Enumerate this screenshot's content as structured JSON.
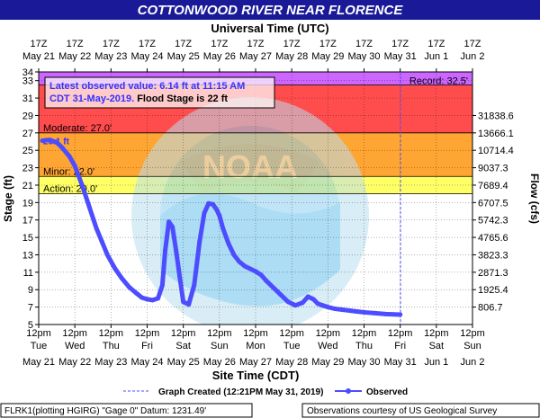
{
  "chart_data": {
    "type": "line",
    "title": "COTTONWOOD RIVER NEAR FLORENCE",
    "top_axis_title": "Universal Time (UTC)",
    "xlabel": "Site Time (CDT)",
    "ylabel": "Stage (ft)",
    "y2label": "Flow (cfs)",
    "ylim": [
      5,
      34
    ],
    "yticks": [
      5,
      7,
      9,
      11,
      13,
      15,
      17,
      19,
      21,
      23,
      25,
      27,
      29,
      31,
      33,
      34
    ],
    "flow_ticks": [
      {
        "stage": 7,
        "label": "806.7"
      },
      {
        "stage": 9,
        "label": "1925.4"
      },
      {
        "stage": 11,
        "label": "2871.3"
      },
      {
        "stage": 13,
        "label": "3823.3"
      },
      {
        "stage": 15,
        "label": "4765.6"
      },
      {
        "stage": 17,
        "label": "5742.3"
      },
      {
        "stage": 19,
        "label": "6707.5"
      },
      {
        "stage": 21,
        "label": "7689.4"
      },
      {
        "stage": 23,
        "label": "9037.3"
      },
      {
        "stage": 25,
        "label": "10714.4"
      },
      {
        "stage": 27,
        "label": "13666.1"
      },
      {
        "stage": 29,
        "label": "31838.6"
      }
    ],
    "x_ticks_bottom": [
      {
        "time": "May 21",
        "hour": "12pm",
        "day": "Tue",
        "date": "May 21"
      },
      {
        "time": "May 22",
        "hour": "12pm",
        "day": "Wed",
        "date": "May 22"
      },
      {
        "time": "May 23",
        "hour": "12pm",
        "day": "Thu",
        "date": "May 23"
      },
      {
        "time": "May 24",
        "hour": "12pm",
        "day": "Fri",
        "date": "May 24"
      },
      {
        "time": "May 25",
        "hour": "12pm",
        "day": "Sat",
        "date": "May 25"
      },
      {
        "time": "May 26",
        "hour": "12pm",
        "day": "Sun",
        "date": "May 26"
      },
      {
        "time": "May 27",
        "hour": "12pm",
        "day": "Mon",
        "date": "May 27"
      },
      {
        "time": "May 28",
        "hour": "12pm",
        "day": "Tue",
        "date": "May 28"
      },
      {
        "time": "May 29",
        "hour": "12pm",
        "day": "Wed",
        "date": "May 29"
      },
      {
        "time": "May 30",
        "hour": "12pm",
        "day": "Thu",
        "date": "May 30"
      },
      {
        "time": "May 31",
        "hour": "12pm",
        "day": "Fri",
        "date": "May 31"
      },
      {
        "time": "Jun 1",
        "hour": "12pm",
        "day": "Sat",
        "date": "Jun 1"
      },
      {
        "time": "Jun 2",
        "hour": "12pm",
        "day": "Sun",
        "date": "Jun 2"
      }
    ],
    "x_ticks_top": [
      {
        "hour": "17Z",
        "date": "May 21"
      },
      {
        "hour": "17Z",
        "date": "May 22"
      },
      {
        "hour": "17Z",
        "date": "May 23"
      },
      {
        "hour": "17Z",
        "date": "May 24"
      },
      {
        "hour": "17Z",
        "date": "May 25"
      },
      {
        "hour": "17Z",
        "date": "May 26"
      },
      {
        "hour": "17Z",
        "date": "May 27"
      },
      {
        "hour": "17Z",
        "date": "May 28"
      },
      {
        "hour": "17Z",
        "date": "May 29"
      },
      {
        "hour": "17Z",
        "date": "May 30"
      },
      {
        "hour": "17Z",
        "date": "May 31"
      },
      {
        "hour": "17Z",
        "date": "Jun 1"
      },
      {
        "hour": "17Z",
        "date": "Jun 2"
      }
    ],
    "thresholds": [
      {
        "name": "Action",
        "label": "Action: 20.0'",
        "value": 20.0,
        "band_to": 22.0,
        "color": "#ffff66"
      },
      {
        "name": "Minor",
        "label": "Minor: 22.0'",
        "value": 22.0,
        "band_to": 27.0,
        "color": "#ffa533"
      },
      {
        "name": "Moderate",
        "label": "Moderate: 27.0'",
        "value": 27.0,
        "band_to": 32.5,
        "color": "#ff4d4d"
      },
      {
        "name": "Record",
        "label": "Record: 32.5'",
        "value": 32.5,
        "band_to": 34.0,
        "color": "#cc66ff"
      }
    ],
    "crest_label": "26.1 ft",
    "annotation": {
      "line1": "Latest observed value: 6.14 ft at 11:15 AM",
      "line2_a": "CDT 31-May-2019.",
      "line2_b": " Flood Stage is 22 ft"
    },
    "legend": {
      "graph_created": "Graph Created (12:21PM May 31, 2019)",
      "observed": "Observed"
    },
    "footer_left": "FLRK1(plotting HGIRG) \"Gage 0\" Datum: 1231.49'",
    "footer_right": "Observations courtesy of US Geological Survey",
    "series": [
      {
        "name": "Observed",
        "color": "#4d4dff",
        "x": [
          0.1,
          0.3,
          0.5,
          0.65,
          0.85,
          1.0,
          1.2,
          1.4,
          1.6,
          1.75,
          1.9,
          2.1,
          2.3,
          2.5,
          2.7,
          2.85,
          3.0,
          3.15,
          3.3,
          3.42,
          3.5,
          3.6,
          3.7,
          3.8,
          3.9,
          4.0,
          4.15,
          4.3,
          4.45,
          4.58,
          4.7,
          4.82,
          4.92,
          5.0,
          5.1,
          5.25,
          5.4,
          5.55,
          5.7,
          5.85,
          6.0,
          6.15,
          6.3,
          6.5,
          6.7,
          6.9,
          7.1,
          7.3,
          7.45,
          7.6,
          7.72,
          7.85,
          8.0,
          8.2,
          8.4,
          8.6,
          8.8,
          9.0,
          9.3,
          9.6,
          10.0
        ],
        "values": [
          26.1,
          26.2,
          25.9,
          25.3,
          24.3,
          23.2,
          21.0,
          18.5,
          16.0,
          14.5,
          13.0,
          11.5,
          10.3,
          9.3,
          8.6,
          8.1,
          7.9,
          7.8,
          8.0,
          9.5,
          13.5,
          16.8,
          16.2,
          13.5,
          10.5,
          7.6,
          7.3,
          9.5,
          14.5,
          17.8,
          18.9,
          18.8,
          18.2,
          17.5,
          16.0,
          14.3,
          13.0,
          12.2,
          11.7,
          11.4,
          11.1,
          10.7,
          10.0,
          9.2,
          8.4,
          7.6,
          7.2,
          7.5,
          8.2,
          7.9,
          7.4,
          7.2,
          7.0,
          6.8,
          6.7,
          6.6,
          6.5,
          6.4,
          6.3,
          6.2,
          6.14
        ]
      }
    ]
  }
}
